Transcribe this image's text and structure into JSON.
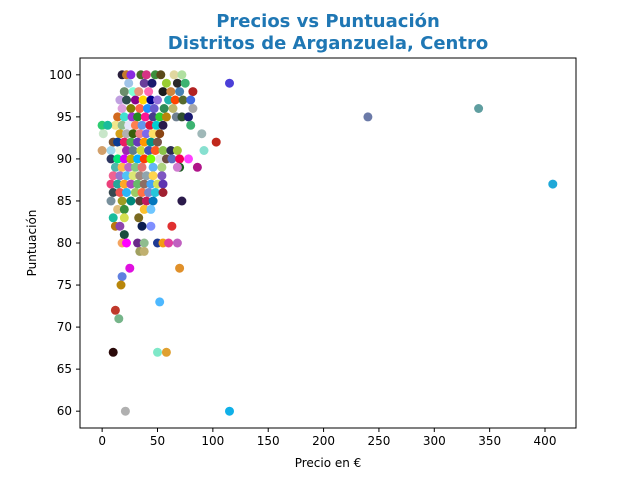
{
  "chart_data": {
    "type": "scatter",
    "title": "Precios vs Puntuación",
    "subtitle": "Distritos de Arganzuela, Centro",
    "xlabel": "Precio en €",
    "ylabel": "Puntuación",
    "xlim": [
      -20,
      428
    ],
    "ylim": [
      58,
      102
    ],
    "xticks": [
      0,
      50,
      100,
      150,
      200,
      250,
      300,
      350,
      400
    ],
    "yticks": [
      60,
      65,
      70,
      75,
      80,
      85,
      90,
      95,
      100
    ],
    "grid": false,
    "title_color": "#1f77b4",
    "points": [
      {
        "x": 18,
        "y": 100,
        "color": "#2a1f3d"
      },
      {
        "x": 22,
        "y": 100,
        "color": "#c47a2c"
      },
      {
        "x": 26,
        "y": 100,
        "color": "#8a2be2"
      },
      {
        "x": 35,
        "y": 100,
        "color": "#4a6b2a"
      },
      {
        "x": 40,
        "y": 100,
        "color": "#d63384"
      },
      {
        "x": 48,
        "y": 100,
        "color": "#3c8f3c"
      },
      {
        "x": 53,
        "y": 100,
        "color": "#5a4a1a"
      },
      {
        "x": 65,
        "y": 100,
        "color": "#e0d7a0"
      },
      {
        "x": 72,
        "y": 100,
        "color": "#b0e0a0"
      },
      {
        "x": 24,
        "y": 99,
        "color": "#a0c4e8"
      },
      {
        "x": 38,
        "y": 99,
        "color": "#6a3d9a"
      },
      {
        "x": 45,
        "y": 99,
        "color": "#1a1a6e"
      },
      {
        "x": 58,
        "y": 99,
        "color": "#9acd32"
      },
      {
        "x": 68,
        "y": 99,
        "color": "#2b2b2b"
      },
      {
        "x": 75,
        "y": 99,
        "color": "#3cb371"
      },
      {
        "x": 115,
        "y": 99,
        "color": "#4b3fd8"
      },
      {
        "x": 20,
        "y": 98,
        "color": "#6b8e6b"
      },
      {
        "x": 28,
        "y": 98,
        "color": "#7fffd4"
      },
      {
        "x": 33,
        "y": 98,
        "color": "#e9967a"
      },
      {
        "x": 42,
        "y": 98,
        "color": "#ff69b4"
      },
      {
        "x": 55,
        "y": 98,
        "color": "#1b1b1b"
      },
      {
        "x": 62,
        "y": 98,
        "color": "#cd853f"
      },
      {
        "x": 70,
        "y": 98,
        "color": "#4682b4"
      },
      {
        "x": 82,
        "y": 98,
        "color": "#b22222"
      },
      {
        "x": 16,
        "y": 97,
        "color": "#c0a0e0"
      },
      {
        "x": 22,
        "y": 97,
        "color": "#2f4f4f"
      },
      {
        "x": 30,
        "y": 97,
        "color": "#8b008b"
      },
      {
        "x": 37,
        "y": 97,
        "color": "#ffd700"
      },
      {
        "x": 44,
        "y": 97,
        "color": "#00008b"
      },
      {
        "x": 50,
        "y": 97,
        "color": "#9370db"
      },
      {
        "x": 60,
        "y": 97,
        "color": "#20b2aa"
      },
      {
        "x": 66,
        "y": 97,
        "color": "#ff4500"
      },
      {
        "x": 73,
        "y": 97,
        "color": "#556b2f"
      },
      {
        "x": 80,
        "y": 97,
        "color": "#4169e1"
      },
      {
        "x": 82,
        "y": 96,
        "color": "#a9a9a9"
      },
      {
        "x": 18,
        "y": 96,
        "color": "#dda0dd"
      },
      {
        "x": 26,
        "y": 96,
        "color": "#808000"
      },
      {
        "x": 34,
        "y": 96,
        "color": "#ff6347"
      },
      {
        "x": 41,
        "y": 96,
        "color": "#1e90ff"
      },
      {
        "x": 47,
        "y": 96,
        "color": "#6a5acd"
      },
      {
        "x": 56,
        "y": 96,
        "color": "#2e8b57"
      },
      {
        "x": 64,
        "y": 96,
        "color": "#bdb76b"
      },
      {
        "x": 14,
        "y": 95,
        "color": "#d2691e"
      },
      {
        "x": 20,
        "y": 95,
        "color": "#40e0d0"
      },
      {
        "x": 27,
        "y": 95,
        "color": "#9932cc"
      },
      {
        "x": 32,
        "y": 95,
        "color": "#228b22"
      },
      {
        "x": 39,
        "y": 95,
        "color": "#ff1493"
      },
      {
        "x": 46,
        "y": 95,
        "color": "#483d8b"
      },
      {
        "x": 52,
        "y": 95,
        "color": "#32cd32"
      },
      {
        "x": 58,
        "y": 95,
        "color": "#b8860b"
      },
      {
        "x": 67,
        "y": 95,
        "color": "#708090"
      },
      {
        "x": 72,
        "y": 95,
        "color": "#2f4f2f"
      },
      {
        "x": 78,
        "y": 95,
        "color": "#191970"
      },
      {
        "x": 240,
        "y": 95,
        "color": "#6b7aa8"
      },
      {
        "x": 340,
        "y": 96,
        "color": "#5f9ea0"
      },
      {
        "x": 12,
        "y": 94,
        "color": "#f0e68c"
      },
      {
        "x": 18,
        "y": 94,
        "color": "#8fbc8f"
      },
      {
        "x": 24,
        "y": 94,
        "color": "#e6e6fa"
      },
      {
        "x": 30,
        "y": 94,
        "color": "#ff7f50"
      },
      {
        "x": 36,
        "y": 94,
        "color": "#6495ed"
      },
      {
        "x": 43,
        "y": 94,
        "color": "#dc143c"
      },
      {
        "x": 49,
        "y": 94,
        "color": "#00ced1"
      },
      {
        "x": 55,
        "y": 94,
        "color": "#2b1b4b"
      },
      {
        "x": 80,
        "y": 94,
        "color": "#3cb371"
      },
      {
        "x": 0,
        "y": 94,
        "color": "#2ecc71"
      },
      {
        "x": 5,
        "y": 94,
        "color": "#1abc9c"
      },
      {
        "x": 16,
        "y": 93,
        "color": "#d4a017"
      },
      {
        "x": 22,
        "y": 93,
        "color": "#b0b0b0"
      },
      {
        "x": 28,
        "y": 93,
        "color": "#3a5f0b"
      },
      {
        "x": 34,
        "y": 93,
        "color": "#f08080"
      },
      {
        "x": 40,
        "y": 93,
        "color": "#7b68ee"
      },
      {
        "x": 46,
        "y": 93,
        "color": "#ffe066"
      },
      {
        "x": 52,
        "y": 93,
        "color": "#8b4513"
      },
      {
        "x": 90,
        "y": 93,
        "color": "#9fb8b8"
      },
      {
        "x": 1,
        "y": 93,
        "color": "#c8e6c9"
      },
      {
        "x": 10,
        "y": 92,
        "color": "#7a5230"
      },
      {
        "x": 14,
        "y": 92,
        "color": "#0b3d91"
      },
      {
        "x": 20,
        "y": 92,
        "color": "#e91e63"
      },
      {
        "x": 26,
        "y": 92,
        "color": "#4caf50"
      },
      {
        "x": 32,
        "y": 92,
        "color": "#673ab7"
      },
      {
        "x": 38,
        "y": 92,
        "color": "#ff9800"
      },
      {
        "x": 44,
        "y": 92,
        "color": "#009688"
      },
      {
        "x": 50,
        "y": 92,
        "color": "#795548"
      },
      {
        "x": 103,
        "y": 92,
        "color": "#c0281c"
      },
      {
        "x": 0,
        "y": 91,
        "color": "#d2a06b"
      },
      {
        "x": 8,
        "y": 91,
        "color": "#a0d8ef"
      },
      {
        "x": 16,
        "y": 91,
        "color": "#f5f5dc"
      },
      {
        "x": 22,
        "y": 91,
        "color": "#9c27b0"
      },
      {
        "x": 28,
        "y": 91,
        "color": "#607d8b"
      },
      {
        "x": 35,
        "y": 91,
        "color": "#cddc39"
      },
      {
        "x": 42,
        "y": 91,
        "color": "#3f51b5"
      },
      {
        "x": 48,
        "y": 91,
        "color": "#ff5722"
      },
      {
        "x": 55,
        "y": 91,
        "color": "#8bc34a"
      },
      {
        "x": 62,
        "y": 91,
        "color": "#2c2c54"
      },
      {
        "x": 68,
        "y": 91,
        "color": "#a4c639"
      },
      {
        "x": 92,
        "y": 91,
        "color": "#87e0d0"
      },
      {
        "x": 8,
        "y": 90,
        "color": "#2d3561"
      },
      {
        "x": 14,
        "y": 90,
        "color": "#00e676"
      },
      {
        "x": 20,
        "y": 90,
        "color": "#d500f9"
      },
      {
        "x": 26,
        "y": 90,
        "color": "#c6b000"
      },
      {
        "x": 32,
        "y": 90,
        "color": "#00b0ff"
      },
      {
        "x": 38,
        "y": 90,
        "color": "#ff3d00"
      },
      {
        "x": 44,
        "y": 90,
        "color": "#76ff03"
      },
      {
        "x": 52,
        "y": 90,
        "color": "#e0e0e0"
      },
      {
        "x": 58,
        "y": 90,
        "color": "#6d4c41"
      },
      {
        "x": 63,
        "y": 90,
        "color": "#5c6bc0"
      },
      {
        "x": 70,
        "y": 90,
        "color": "#f50057"
      },
      {
        "x": 78,
        "y": 90,
        "color": "#ff40ff"
      },
      {
        "x": 12,
        "y": 89,
        "color": "#4db6ac"
      },
      {
        "x": 18,
        "y": 89,
        "color": "#ffb74d"
      },
      {
        "x": 24,
        "y": 89,
        "color": "#ba68c8"
      },
      {
        "x": 30,
        "y": 89,
        "color": "#81c784"
      },
      {
        "x": 36,
        "y": 89,
        "color": "#e57373"
      },
      {
        "x": 46,
        "y": 89,
        "color": "#64b5f6"
      },
      {
        "x": 54,
        "y": 89,
        "color": "#aed581"
      },
      {
        "x": 70,
        "y": 89,
        "color": "#1b5e20"
      },
      {
        "x": 86,
        "y": 89,
        "color": "#b0158a"
      },
      {
        "x": 68,
        "y": 89,
        "color": "#d07bd0"
      },
      {
        "x": 10,
        "y": 88,
        "color": "#f06292"
      },
      {
        "x": 16,
        "y": 88,
        "color": "#9575cd"
      },
      {
        "x": 22,
        "y": 88,
        "color": "#4fc3f7"
      },
      {
        "x": 28,
        "y": 88,
        "color": "#dce775"
      },
      {
        "x": 34,
        "y": 88,
        "color": "#a1887f"
      },
      {
        "x": 40,
        "y": 88,
        "color": "#90a4ae"
      },
      {
        "x": 46,
        "y": 88,
        "color": "#ffd54f"
      },
      {
        "x": 54,
        "y": 88,
        "color": "#7e57c2"
      },
      {
        "x": 8,
        "y": 87,
        "color": "#ec407a"
      },
      {
        "x": 14,
        "y": 87,
        "color": "#26a69a"
      },
      {
        "x": 20,
        "y": 87,
        "color": "#ffa726"
      },
      {
        "x": 26,
        "y": 87,
        "color": "#ab47bc"
      },
      {
        "x": 32,
        "y": 87,
        "color": "#66bb6a"
      },
      {
        "x": 38,
        "y": 87,
        "color": "#8d6e63"
      },
      {
        "x": 44,
        "y": 87,
        "color": "#42a5f5"
      },
      {
        "x": 50,
        "y": 87,
        "color": "#d4e157"
      },
      {
        "x": 55,
        "y": 87,
        "color": "#5e35b1"
      },
      {
        "x": 407,
        "y": 87,
        "color": "#1fa8d8"
      },
      {
        "x": 10,
        "y": 86,
        "color": "#37474f"
      },
      {
        "x": 16,
        "y": 86,
        "color": "#ef5350"
      },
      {
        "x": 22,
        "y": 86,
        "color": "#29b6f6"
      },
      {
        "x": 30,
        "y": 86,
        "color": "#9ccc65"
      },
      {
        "x": 36,
        "y": 86,
        "color": "#ff7043"
      },
      {
        "x": 42,
        "y": 86,
        "color": "#7986cb"
      },
      {
        "x": 48,
        "y": 86,
        "color": "#26c6da"
      },
      {
        "x": 55,
        "y": 86,
        "color": "#a02030"
      },
      {
        "x": 8,
        "y": 85,
        "color": "#78909c"
      },
      {
        "x": 18,
        "y": 85,
        "color": "#9e9d24"
      },
      {
        "x": 26,
        "y": 85,
        "color": "#00897b"
      },
      {
        "x": 34,
        "y": 85,
        "color": "#5d4037"
      },
      {
        "x": 40,
        "y": 85,
        "color": "#c2185b"
      },
      {
        "x": 46,
        "y": 85,
        "color": "#0277bd"
      },
      {
        "x": 72,
        "y": 85,
        "color": "#2a1a4a"
      },
      {
        "x": 14,
        "y": 84,
        "color": "#e0c080"
      },
      {
        "x": 20,
        "y": 84,
        "color": "#388e3c"
      },
      {
        "x": 38,
        "y": 84,
        "color": "#fbc02d"
      },
      {
        "x": 44,
        "y": 84,
        "color": "#6ec6ff"
      },
      {
        "x": 10,
        "y": 83,
        "color": "#1abc9c"
      },
      {
        "x": 20,
        "y": 83,
        "color": "#d4e050"
      },
      {
        "x": 33,
        "y": 83,
        "color": "#7a6a20"
      },
      {
        "x": 12,
        "y": 82,
        "color": "#b9770e"
      },
      {
        "x": 16,
        "y": 82,
        "color": "#8e44ad"
      },
      {
        "x": 36,
        "y": 82,
        "color": "#0b1d51"
      },
      {
        "x": 44,
        "y": 82,
        "color": "#7f8fff"
      },
      {
        "x": 63,
        "y": 82,
        "color": "#e03030"
      },
      {
        "x": 20,
        "y": 81,
        "color": "#1b4d3e"
      },
      {
        "x": 18,
        "y": 80,
        "color": "#f4a460"
      },
      {
        "x": 22,
        "y": 80,
        "color": "#ff00ff"
      },
      {
        "x": 32,
        "y": 80,
        "color": "#6a2a8a"
      },
      {
        "x": 38,
        "y": 80,
        "color": "#8fbc8f"
      },
      {
        "x": 50,
        "y": 80,
        "color": "#1f3a93"
      },
      {
        "x": 55,
        "y": 80,
        "color": "#f39c12"
      },
      {
        "x": 60,
        "y": 80,
        "color": "#e040a0"
      },
      {
        "x": 68,
        "y": 80,
        "color": "#c060c0"
      },
      {
        "x": 34,
        "y": 79,
        "color": "#a0a060"
      },
      {
        "x": 38,
        "y": 79,
        "color": "#c0b070"
      },
      {
        "x": 25,
        "y": 77,
        "color": "#e010e0"
      },
      {
        "x": 70,
        "y": 77,
        "color": "#e0902a"
      },
      {
        "x": 18,
        "y": 76,
        "color": "#6080e0"
      },
      {
        "x": 17,
        "y": 75,
        "color": "#b8860b"
      },
      {
        "x": 52,
        "y": 73,
        "color": "#4db8ff"
      },
      {
        "x": 12,
        "y": 72,
        "color": "#c0392b"
      },
      {
        "x": 15,
        "y": 71,
        "color": "#76b58a"
      },
      {
        "x": 10,
        "y": 67,
        "color": "#2a0a0a"
      },
      {
        "x": 50,
        "y": 67,
        "color": "#7fe8c8"
      },
      {
        "x": 58,
        "y": 67,
        "color": "#e0a030"
      },
      {
        "x": 21,
        "y": 60,
        "color": "#b0b0b0"
      },
      {
        "x": 115,
        "y": 60,
        "color": "#10b0e8"
      }
    ]
  }
}
